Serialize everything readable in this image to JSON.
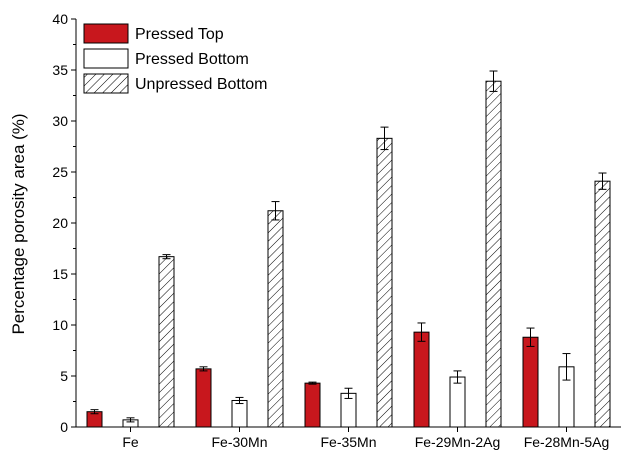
{
  "chart_data": {
    "type": "bar",
    "title": "",
    "xlabel": "",
    "ylabel": "Percentage porosity area (%)",
    "ylim": [
      0,
      40
    ],
    "yticks": [
      0,
      5,
      10,
      15,
      20,
      25,
      30,
      35,
      40
    ],
    "categories": [
      "Fe",
      "Fe-30Mn",
      "Fe-35Mn",
      "Fe-29Mn-2Ag",
      "Fe-28Mn-5Ag"
    ],
    "series": [
      {
        "name": "Pressed Top",
        "style": "solid",
        "color": "#c8171d",
        "values": [
          1.5,
          5.7,
          4.3,
          9.3,
          8.8
        ],
        "errors": [
          0.2,
          0.2,
          0.1,
          0.9,
          0.9
        ]
      },
      {
        "name": "Pressed Bottom",
        "style": "hollow",
        "color": "#ffffff",
        "values": [
          0.7,
          2.6,
          3.3,
          4.9,
          5.9
        ],
        "errors": [
          0.2,
          0.3,
          0.5,
          0.6,
          1.3
        ]
      },
      {
        "name": "Unpressed Bottom",
        "style": "hatched",
        "color": "#ffffff",
        "values": [
          16.7,
          21.2,
          28.3,
          33.9,
          24.1
        ],
        "errors": [
          0.2,
          0.9,
          1.1,
          1.0,
          0.8
        ]
      }
    ],
    "error_bars": true,
    "grid": false,
    "legend_position": "top-left"
  }
}
